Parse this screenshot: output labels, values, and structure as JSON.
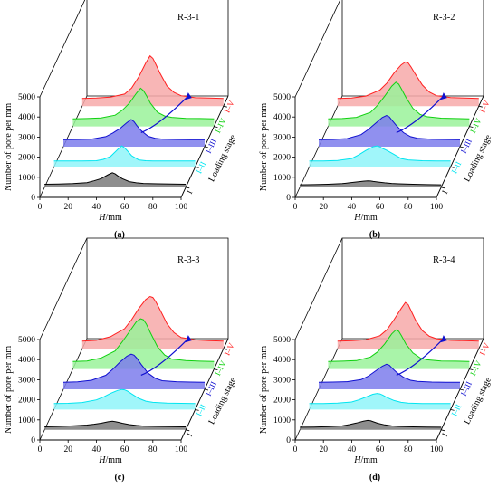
{
  "chart_data": [
    {
      "type": "area",
      "panel_label": "(a)",
      "title": "R-3-1",
      "xlabel_italic": "H",
      "xlabel_unit": "/mm",
      "ylabel": "Number of pore per mm",
      "zlabel": "Loading stage",
      "x_ticks": [
        "0",
        "20",
        "40",
        "60",
        "80",
        "100"
      ],
      "y_ticks": [
        "0",
        "1000",
        "2000",
        "3000",
        "4000",
        "5000"
      ],
      "xlim": [
        0,
        100
      ],
      "ylim": [
        0,
        5000
      ],
      "series": [
        {
          "name": "I",
          "color": "#000000",
          "fill": "#7a7a7a",
          "x": [
            0,
            10,
            20,
            30,
            35,
            40,
            45,
            48,
            50,
            52,
            55,
            60,
            65,
            70,
            80,
            90,
            100
          ],
          "y": [
            150,
            160,
            180,
            230,
            320,
            430,
            620,
            720,
            660,
            560,
            430,
            280,
            220,
            190,
            170,
            160,
            150
          ]
        },
        {
          "name": "I–II",
          "color": "#00e5f0",
          "fill": "#8ff4f9",
          "x": [
            0,
            10,
            20,
            30,
            35,
            40,
            45,
            48,
            50,
            52,
            55,
            60,
            65,
            70,
            80,
            90,
            100
          ],
          "y": [
            300,
            300,
            300,
            310,
            380,
            520,
            860,
            1050,
            950,
            800,
            560,
            350,
            310,
            300,
            300,
            300,
            300
          ]
        },
        {
          "name": "I–III",
          "color": "#1010d0",
          "fill": "#7c7cec",
          "x": [
            0,
            10,
            20,
            30,
            35,
            40,
            45,
            48,
            50,
            52,
            55,
            60,
            65,
            70,
            80,
            90,
            100
          ],
          "y": [
            350,
            360,
            380,
            500,
            680,
            900,
            1200,
            1350,
            1250,
            1050,
            800,
            520,
            420,
            380,
            360,
            350,
            350
          ]
        },
        {
          "name": "I–IV",
          "color": "#10d010",
          "fill": "#9af29a",
          "x": [
            0,
            10,
            20,
            30,
            35,
            40,
            45,
            48,
            50,
            52,
            55,
            60,
            65,
            70,
            80,
            90,
            100
          ],
          "y": [
            380,
            390,
            420,
            560,
            800,
            1150,
            1650,
            1900,
            1780,
            1550,
            1150,
            700,
            520,
            450,
            400,
            390,
            380
          ]
        },
        {
          "name": "I–V",
          "color": "#ff2020",
          "fill": "#f7a9a9",
          "x": [
            0,
            10,
            20,
            30,
            35,
            40,
            45,
            48,
            50,
            52,
            55,
            60,
            65,
            70,
            80,
            90,
            100
          ],
          "y": [
            380,
            400,
            450,
            600,
            900,
            1450,
            2150,
            2500,
            2380,
            2100,
            1650,
            1000,
            680,
            520,
            420,
            400,
            380
          ]
        }
      ]
    },
    {
      "type": "area",
      "panel_label": "(b)",
      "title": "R-3-2",
      "xlabel_italic": "H",
      "xlabel_unit": "/mm",
      "ylabel": "Number of pore per mm",
      "zlabel": "Loading stage",
      "x_ticks": [
        "0",
        "20",
        "40",
        "60",
        "80",
        "100"
      ],
      "y_ticks": [
        "0",
        "1000",
        "2000",
        "3000",
        "4000",
        "5000"
      ],
      "xlim": [
        0,
        100
      ],
      "ylim": [
        0,
        5000
      ],
      "series": [
        {
          "name": "I",
          "color": "#000000",
          "fill": "#7a7a7a",
          "x": [
            0,
            10,
            20,
            30,
            35,
            40,
            45,
            48,
            50,
            52,
            55,
            60,
            65,
            70,
            80,
            90,
            100
          ],
          "y": [
            120,
            130,
            150,
            180,
            220,
            260,
            300,
            320,
            310,
            290,
            260,
            220,
            190,
            170,
            150,
            130,
            120
          ]
        },
        {
          "name": "I–II",
          "color": "#00e5f0",
          "fill": "#8ff4f9",
          "x": [
            0,
            10,
            20,
            30,
            35,
            40,
            45,
            48,
            50,
            52,
            55,
            60,
            65,
            70,
            80,
            90,
            100
          ],
          "y": [
            300,
            300,
            320,
            420,
            600,
            820,
            1000,
            1050,
            1000,
            920,
            820,
            620,
            420,
            350,
            310,
            300,
            300
          ]
        },
        {
          "name": "I–III",
          "color": "#1010d0",
          "fill": "#7c7cec",
          "x": [
            0,
            10,
            20,
            30,
            35,
            40,
            45,
            48,
            50,
            52,
            55,
            60,
            65,
            70,
            80,
            90,
            100
          ],
          "y": [
            350,
            360,
            400,
            600,
            850,
            1150,
            1450,
            1550,
            1480,
            1300,
            1050,
            700,
            500,
            420,
            370,
            360,
            350
          ]
        },
        {
          "name": "I–IV",
          "color": "#10d010",
          "fill": "#9af29a",
          "x": [
            0,
            10,
            20,
            30,
            35,
            40,
            45,
            48,
            50,
            52,
            55,
            60,
            65,
            70,
            80,
            90,
            100
          ],
          "y": [
            380,
            390,
            450,
            700,
            1050,
            1500,
            2000,
            2200,
            2100,
            1850,
            1450,
            900,
            600,
            480,
            410,
            390,
            380
          ]
        },
        {
          "name": "I–V",
          "color": "#ff2020",
          "fill": "#f7a9a9",
          "x": [
            0,
            10,
            20,
            30,
            35,
            40,
            45,
            48,
            50,
            52,
            55,
            60,
            65,
            70,
            80,
            90,
            100
          ],
          "y": [
            380,
            400,
            500,
            800,
            1150,
            1650,
            2050,
            2200,
            2150,
            1950,
            1600,
            1050,
            700,
            520,
            430,
            400,
            380
          ]
        }
      ]
    },
    {
      "type": "area",
      "panel_label": "(c)",
      "title": "R-3-3",
      "xlabel_italic": "H",
      "xlabel_unit": "/mm",
      "ylabel": "Number of pore per mm",
      "zlabel": "Loading stage",
      "x_ticks": [
        "0",
        "20",
        "40",
        "60",
        "80",
        "100"
      ],
      "y_ticks": [
        "0",
        "1000",
        "2000",
        "3000",
        "4000",
        "5000"
      ],
      "xlim": [
        0,
        100
      ],
      "ylim": [
        0,
        5000
      ],
      "series": [
        {
          "name": "I",
          "color": "#000000",
          "fill": "#7a7a7a",
          "x": [
            0,
            10,
            20,
            30,
            35,
            40,
            45,
            48,
            50,
            52,
            55,
            60,
            65,
            70,
            80,
            90,
            100
          ],
          "y": [
            150,
            170,
            200,
            240,
            280,
            330,
            400,
            430,
            410,
            380,
            330,
            260,
            220,
            190,
            170,
            160,
            150
          ]
        },
        {
          "name": "I–II",
          "color": "#00e5f0",
          "fill": "#8ff4f9",
          "x": [
            0,
            10,
            20,
            30,
            35,
            40,
            45,
            48,
            50,
            52,
            55,
            60,
            65,
            70,
            80,
            90,
            100
          ],
          "y": [
            300,
            310,
            350,
            480,
            620,
            800,
            950,
            1000,
            980,
            920,
            780,
            560,
            420,
            360,
            320,
            310,
            300
          ]
        },
        {
          "name": "I–III",
          "color": "#1010d0",
          "fill": "#7c7cec",
          "x": [
            0,
            10,
            20,
            30,
            35,
            40,
            45,
            48,
            50,
            52,
            55,
            60,
            65,
            70,
            80,
            90,
            100
          ],
          "y": [
            350,
            370,
            450,
            700,
            1000,
            1350,
            1650,
            1750,
            1700,
            1550,
            1250,
            800,
            550,
            430,
            380,
            360,
            350
          ]
        },
        {
          "name": "I–IV",
          "color": "#10d010",
          "fill": "#9af29a",
          "x": [
            0,
            10,
            20,
            30,
            35,
            40,
            45,
            48,
            50,
            52,
            55,
            60,
            65,
            70,
            80,
            90,
            100
          ],
          "y": [
            380,
            400,
            550,
            900,
            1350,
            1850,
            2350,
            2500,
            2450,
            2250,
            1800,
            1100,
            700,
            500,
            420,
            390,
            380
          ]
        },
        {
          "name": "I–V",
          "color": "#ff2020",
          "fill": "#f7a9a9",
          "x": [
            0,
            10,
            20,
            30,
            35,
            40,
            45,
            48,
            50,
            52,
            55,
            60,
            65,
            70,
            80,
            90,
            100
          ],
          "y": [
            380,
            420,
            600,
            1000,
            1450,
            2000,
            2450,
            2600,
            2550,
            2350,
            1950,
            1250,
            800,
            560,
            440,
            400,
            380
          ]
        }
      ]
    },
    {
      "type": "area",
      "panel_label": "(d)",
      "title": "R-3-4",
      "xlabel_italic": "H",
      "xlabel_unit": "/mm",
      "ylabel": "Number of pore per mm",
      "zlabel": "Loading stage",
      "x_ticks": [
        "0",
        "20",
        "40",
        "60",
        "80",
        "100"
      ],
      "y_ticks": [
        "0",
        "1000",
        "2000",
        "3000",
        "4000",
        "5000"
      ],
      "xlim": [
        0,
        100
      ],
      "ylim": [
        0,
        5000
      ],
      "series": [
        {
          "name": "I",
          "color": "#000000",
          "fill": "#7a7a7a",
          "x": [
            0,
            10,
            20,
            30,
            35,
            40,
            45,
            48,
            50,
            52,
            55,
            60,
            65,
            70,
            80,
            90,
            100
          ],
          "y": [
            130,
            140,
            160,
            200,
            260,
            340,
            430,
            470,
            450,
            400,
            330,
            250,
            200,
            170,
            150,
            140,
            130
          ]
        },
        {
          "name": "I–II",
          "color": "#00e5f0",
          "fill": "#8ff4f9",
          "x": [
            0,
            10,
            20,
            30,
            35,
            40,
            45,
            48,
            50,
            52,
            55,
            60,
            65,
            70,
            80,
            90,
            100
          ],
          "y": [
            300,
            300,
            320,
            380,
            480,
            620,
            760,
            800,
            780,
            720,
            600,
            450,
            360,
            320,
            300,
            300,
            300
          ]
        },
        {
          "name": "I–III",
          "color": "#1010d0",
          "fill": "#7c7cec",
          "x": [
            0,
            10,
            20,
            30,
            35,
            40,
            45,
            48,
            50,
            52,
            55,
            60,
            65,
            70,
            80,
            90,
            100
          ],
          "y": [
            350,
            360,
            380,
            480,
            650,
            900,
            1150,
            1250,
            1200,
            1050,
            850,
            600,
            450,
            390,
            360,
            350,
            350
          ]
        },
        {
          "name": "I–IV",
          "color": "#10d010",
          "fill": "#9af29a",
          "x": [
            0,
            10,
            20,
            30,
            35,
            40,
            45,
            48,
            50,
            52,
            55,
            60,
            65,
            70,
            80,
            90,
            100
          ],
          "y": [
            380,
            390,
            420,
            600,
            850,
            1250,
            1750,
            1950,
            1880,
            1650,
            1250,
            800,
            560,
            460,
            400,
            390,
            380
          ]
        },
        {
          "name": "I–V",
          "color": "#ff2020",
          "fill": "#f7a9a9",
          "x": [
            0,
            10,
            20,
            30,
            35,
            40,
            45,
            48,
            50,
            52,
            55,
            60,
            65,
            70,
            80,
            90,
            100
          ],
          "y": [
            380,
            400,
            450,
            650,
            950,
            1450,
            2000,
            2300,
            2200,
            1900,
            1450,
            900,
            620,
            500,
            420,
            400,
            380
          ]
        }
      ]
    }
  ]
}
